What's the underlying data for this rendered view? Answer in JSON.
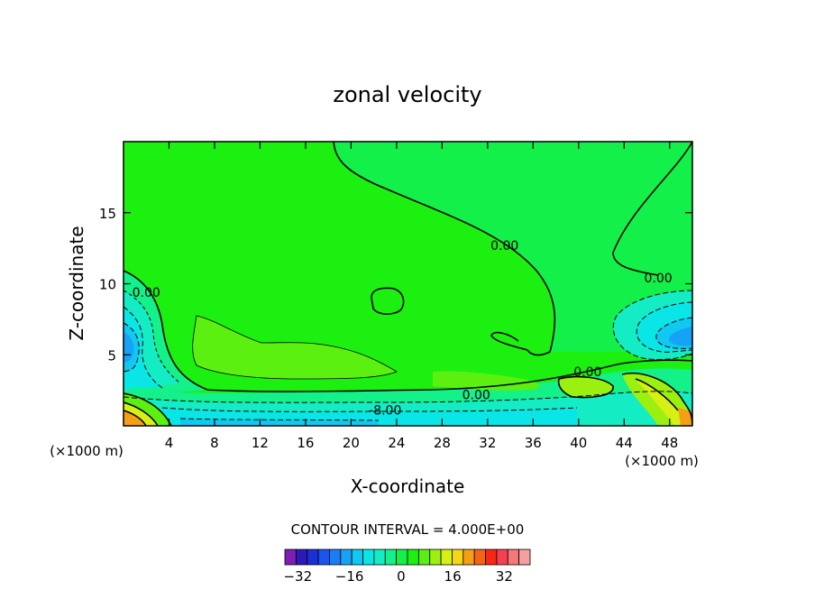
{
  "chart_data": {
    "type": "contour",
    "title": "zonal velocity",
    "xlabel": "X-coordinate",
    "ylabel": "Z-coordinate",
    "x_units": "(×1000 m)",
    "xlim": [
      0,
      50
    ],
    "ylim": [
      0,
      20
    ],
    "x_ticks": [
      4,
      8,
      12,
      16,
      20,
      24,
      28,
      32,
      36,
      40,
      44,
      48
    ],
    "y_ticks": [
      5,
      10,
      15
    ],
    "contour_interval_label": "CONTOUR INTERVAL = 4.000E+00",
    "contour_interval": 4,
    "contour_labels": [
      {
        "text": "0.00",
        "x": 33.5,
        "y": 12.7
      },
      {
        "text": "0.00",
        "x": 47.0,
        "y": 10.4
      },
      {
        "text": "0.00",
        "x": 2.0,
        "y": 9.4
      },
      {
        "text": "0.00",
        "x": 40.8,
        "y": 3.8
      },
      {
        "text": "0.00",
        "x": 31.0,
        "y": 2.2
      },
      {
        "text": "-8.00",
        "x": 23.0,
        "y": 1.1
      }
    ],
    "colorbar": {
      "min": -36,
      "max": 40,
      "step": 4,
      "tick_labels": [
        "-32",
        "-16",
        "0",
        "16",
        "32"
      ],
      "tick_values": [
        -32,
        -16,
        0,
        16,
        32
      ],
      "colors": [
        "#7d1fb3",
        "#2e19b8",
        "#1a2fd6",
        "#1a55f0",
        "#1a7df5",
        "#17a3f5",
        "#10c8f0",
        "#0ae6e6",
        "#14ecc4",
        "#14f08a",
        "#14f04a",
        "#1cf010",
        "#5cf010",
        "#9cf010",
        "#d6f014",
        "#f5d614",
        "#f5a014",
        "#f56414",
        "#f52814",
        "#f54050",
        "#f57878",
        "#f5a0a0"
      ]
    },
    "background_level": "0",
    "grid": false,
    "legend": "colorbar-bottom"
  }
}
